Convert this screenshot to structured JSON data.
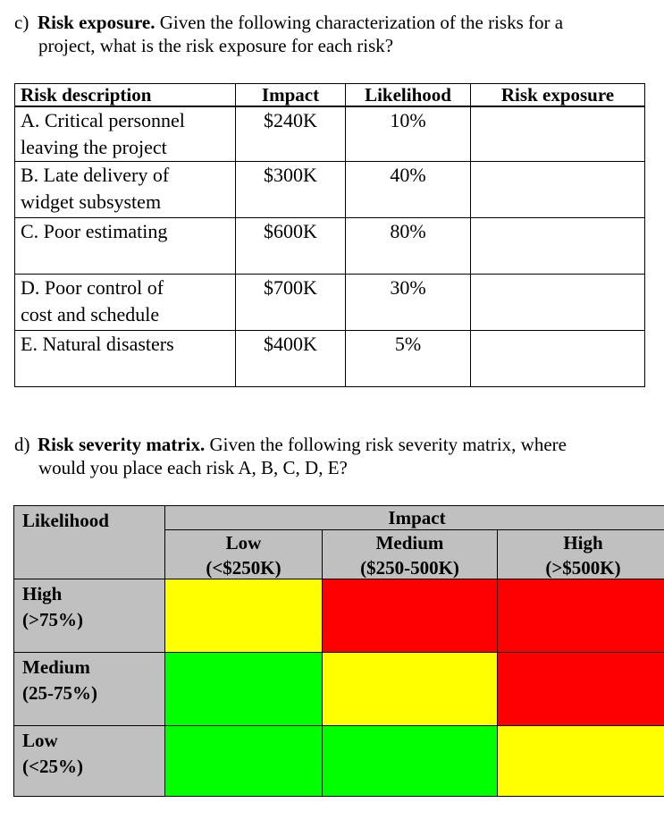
{
  "question_c": {
    "label": "c)",
    "title": "Risk exposure.",
    "text_line1": " Given the following characterization of the risks for a",
    "text_line2": "project, what is the risk exposure for each risk?"
  },
  "exposure_table": {
    "headers": {
      "description": "Risk description",
      "impact": "Impact",
      "likelihood": "Likelihood",
      "exposure": "Risk exposure"
    },
    "rows": [
      {
        "desc1": "A. Critical personnel",
        "desc2": "leaving the project",
        "impact": "$240K",
        "likelihood": "10%",
        "exposure": ""
      },
      {
        "desc1": "B. Late delivery of",
        "desc2": "widget subsystem",
        "impact": "$300K",
        "likelihood": "40%",
        "exposure": ""
      },
      {
        "desc1": "C. Poor estimating",
        "desc2": "",
        "impact": "$600K",
        "likelihood": "80%",
        "exposure": ""
      },
      {
        "desc1": "D. Poor control of",
        "desc2": "cost and schedule",
        "impact": "$700K",
        "likelihood": "30%",
        "exposure": ""
      },
      {
        "desc1": "E. Natural disasters",
        "desc2": "",
        "impact": "$400K",
        "likelihood": "5%",
        "exposure": ""
      }
    ]
  },
  "question_d": {
    "label": "d)",
    "title": "Risk severity matrix.",
    "text_line1": " Given the following risk severity matrix, where",
    "text_line2": "would you place each risk A, B, C, D, E?"
  },
  "severity_matrix": {
    "likelihood_header": "Likelihood",
    "impact_header": "Impact",
    "columns": [
      {
        "name": "Low",
        "range": "(<$250K)"
      },
      {
        "name": "Medium",
        "range": "($250-500K)"
      },
      {
        "name": "High",
        "range": "(>$500K)"
      }
    ],
    "rows": [
      {
        "name": "High",
        "range": "(>75%)",
        "colors": [
          "yellow",
          "red",
          "red"
        ]
      },
      {
        "name": "Medium",
        "range": "(25-75%)",
        "colors": [
          "green",
          "yellow",
          "red"
        ]
      },
      {
        "name": "Low",
        "range": "(<25%)",
        "colors": [
          "green",
          "green",
          "yellow"
        ]
      }
    ],
    "color_values": {
      "yellow": "#ffff00",
      "red": "#ff0000",
      "green": "#00ff00",
      "header_gray": "#c0c0c0"
    }
  }
}
